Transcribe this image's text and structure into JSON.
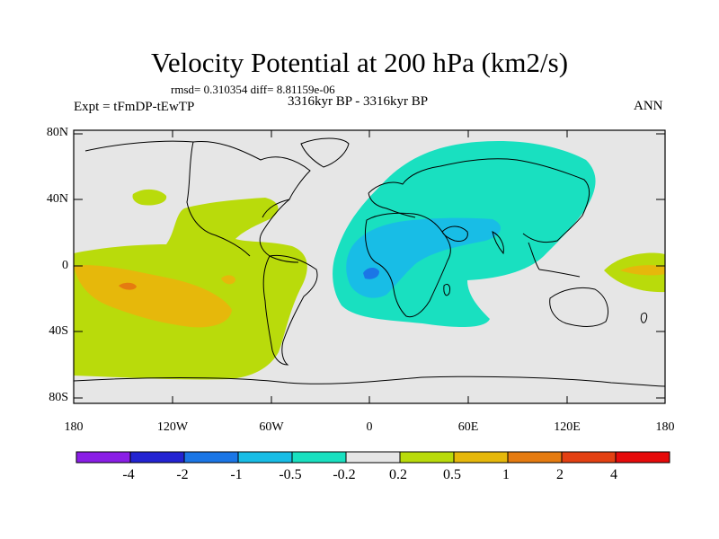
{
  "header": {
    "title": "Velocity Potential at 200 hPa (km2/s)",
    "stats": "rmsd= 0.310354 diff= 8.81159e-06",
    "experiment": "Expt = tFmDP-tEwTP",
    "period": "3316kyr BP - 3316kyr BP",
    "season": "ANN"
  },
  "axes": {
    "lat_ticks": [
      "80N",
      "40N",
      "0",
      "40S",
      "80S"
    ],
    "lon_ticks": [
      "180",
      "120W",
      "60W",
      "0",
      "60E",
      "120E",
      "180"
    ]
  },
  "colorbar": {
    "levels": [
      "-4",
      "-2",
      "-1",
      "-0.5",
      "-0.2",
      "0.2",
      "0.5",
      "1",
      "2",
      "4"
    ],
    "colors": [
      "#8a1ee6",
      "#2323d2",
      "#1b76e6",
      "#18bde6",
      "#19e0c0",
      "#e6e6e6",
      "#b9db0b",
      "#e6b80b",
      "#e57b10",
      "#e34012",
      "#e60a0a"
    ]
  }
}
